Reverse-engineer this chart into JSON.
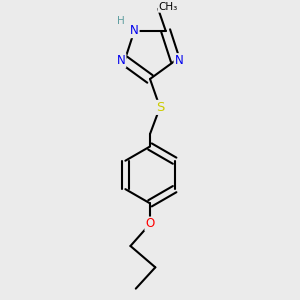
{
  "background_color": "#ebebeb",
  "atom_colors": {
    "N": "#0000ee",
    "S": "#cccc00",
    "O": "#ff0000",
    "C": "#000000",
    "H": "#5f9ea0"
  },
  "bond_color": "#000000",
  "bond_width": 1.5,
  "font_size_atom": 8.5,
  "font_size_H": 7.5,
  "font_size_methyl": 7.5
}
